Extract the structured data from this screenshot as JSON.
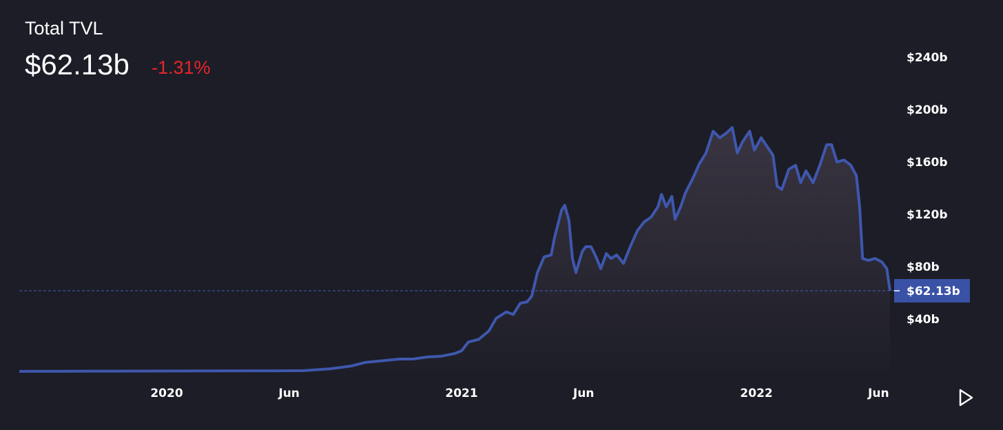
{
  "chart_data": {
    "type": "line",
    "title": "Total TVL",
    "subtitle": "$62.13b",
    "change": "-1.31%",
    "color": "#3f57ad",
    "x": [
      2019.5,
      2019.668,
      2019.902,
      2020.136,
      2020.369,
      2020.463,
      2020.556,
      2020.626,
      2020.673,
      2020.72,
      2020.79,
      2020.836,
      2020.883,
      2020.93,
      2020.977,
      2021.0,
      2021.023,
      2021.058,
      2021.093,
      2021.117,
      2021.152,
      2021.175,
      2021.199,
      2021.222,
      2021.238,
      2021.257,
      2021.28,
      2021.304,
      2021.315,
      2021.339,
      2021.35,
      2021.364,
      2021.376,
      2021.388,
      2021.409,
      2021.421,
      2021.439,
      2021.456,
      2021.472,
      2021.491,
      2021.507,
      2021.526,
      2021.549,
      2021.572,
      2021.596,
      2021.619,
      2021.643,
      2021.666,
      2021.678,
      2021.694,
      2021.713,
      2021.724,
      2021.743,
      2021.759,
      2021.783,
      2021.806,
      2021.829,
      2021.853,
      2021.876,
      2021.9,
      2021.918,
      2021.935,
      2021.953,
      2021.977,
      2021.993,
      2022.016,
      2022.04,
      2022.056,
      2022.07,
      2022.086,
      2022.11,
      2022.133,
      2022.15,
      2022.168,
      2022.192,
      2022.215,
      2022.238,
      2022.255,
      2022.273,
      2022.297,
      2022.32,
      2022.339,
      2022.35,
      2022.36,
      2022.379,
      2022.402,
      2022.425,
      2022.442,
      2022.453
    ],
    "values": [
      0.6,
      0.7,
      0.8,
      0.9,
      1.0,
      1.1,
      2.6,
      4.7,
      7.4,
      8.4,
      10,
      10,
      11.6,
      12.1,
      14.2,
      16.3,
      23,
      25,
      31.6,
      41,
      46,
      44,
      52.6,
      53.7,
      58,
      76,
      88,
      89.5,
      102.6,
      123.7,
      127.4,
      115.8,
      86.8,
      76,
      92,
      95.8,
      95.8,
      88,
      79,
      90.5,
      86.8,
      89.5,
      83,
      95.8,
      108,
      114.7,
      118.4,
      126.3,
      135.8,
      126.3,
      134.2,
      116.8,
      126.3,
      136.8,
      147.4,
      159,
      167.4,
      184,
      179,
      183,
      186.8,
      167.4,
      176,
      184,
      169.5,
      179,
      171,
      165.8,
      142,
      139.5,
      155,
      158,
      144.7,
      153.7,
      144.7,
      158,
      173.7,
      173.7,
      160.5,
      162,
      158,
      150,
      126.3,
      86.8,
      85.3,
      86.8,
      84.2,
      79,
      62.13
    ],
    "xlim": [
      2019.5,
      2022.453
    ],
    "xticks": [
      {
        "value": 2020,
        "label": "2020"
      },
      {
        "value": 2020.415,
        "label": "Jun"
      },
      {
        "value": 2021,
        "label": "2021"
      },
      {
        "value": 2021.414,
        "label": "Jun"
      },
      {
        "value": 2022,
        "label": "2022"
      },
      {
        "value": 2022.414,
        "label": "Jun"
      }
    ],
    "ylim": [
      0,
      270
    ],
    "yticks": [
      {
        "value": 40,
        "label": "$40b"
      },
      {
        "value": 80,
        "label": "$80b"
      },
      {
        "value": 120,
        "label": "$120b"
      },
      {
        "value": 160,
        "label": "$160b"
      },
      {
        "value": 200,
        "label": "$200b"
      },
      {
        "value": 240,
        "label": "$240b"
      }
    ],
    "grid": false
  }
}
